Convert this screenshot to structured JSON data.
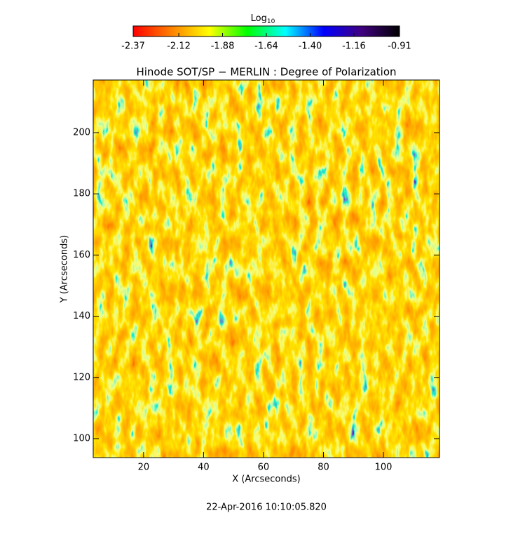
{
  "chart_data": {
    "type": "heatmap",
    "title": "Hinode SOT/SP − MERLIN : Degree of Polarization",
    "x_label": "X (Arcseconds)",
    "y_label": "Y (Arcseconds)",
    "footer": "22-Apr-2016 10:10:05.820",
    "colorbar_label": "Log",
    "colorbar_label_subscript": "10",
    "colorscale": [
      "#ff0000",
      "#ff8000",
      "#ffff00",
      "#00ff00",
      "#00ffff",
      "#0000ff",
      "#400080",
      "#000000"
    ],
    "colorbar_lim": [
      -2.37,
      -0.91
    ],
    "colorbar_ticks": [
      -2.37,
      -2.12,
      -1.88,
      -1.64,
      {
        "value": -1.4,
        "label": "-1.40"
      },
      -1.16,
      -0.91
    ],
    "xlim": [
      3.2,
      118.7
    ],
    "ylim": [
      93.8,
      217.2
    ],
    "xticks": [
      20,
      40,
      60,
      80,
      100
    ],
    "yticks": [
      100,
      120,
      140,
      160,
      180,
      200
    ]
  }
}
